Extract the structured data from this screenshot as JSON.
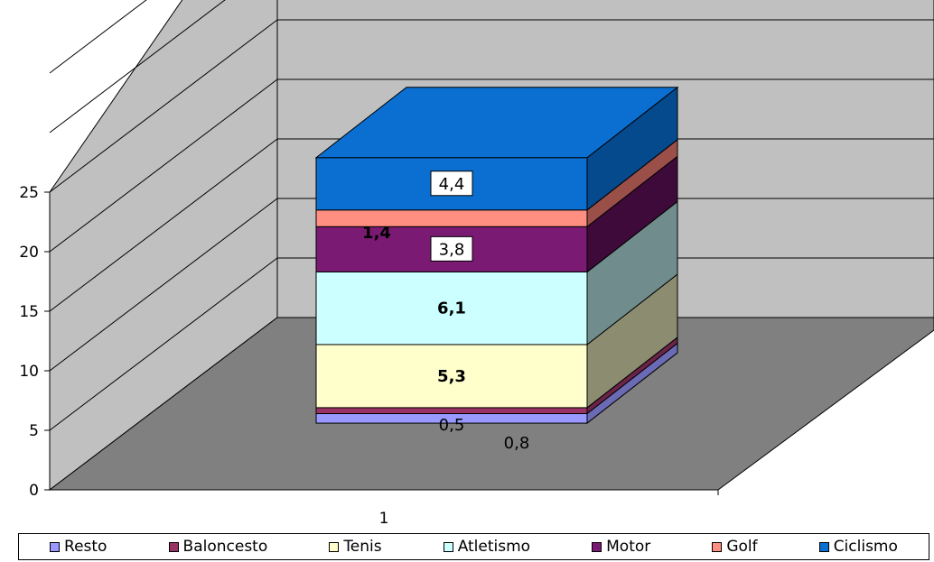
{
  "chart_data": {
    "type": "bar",
    "stacked": true,
    "three_d": true,
    "categories": [
      "1"
    ],
    "ylim": [
      0,
      25
    ],
    "y_ticks": [
      "0",
      "5",
      "10",
      "15",
      "20",
      "25"
    ],
    "grid": true,
    "legend_position": "bottom",
    "series": [
      {
        "name": "Resto",
        "values": [
          0.8
        ],
        "label": "0,8",
        "color": "#9999ff",
        "side": "#6a6ab5",
        "label_style": "plain"
      },
      {
        "name": "Baloncesto",
        "values": [
          0.5
        ],
        "label": "0,5",
        "color": "#993366",
        "side": "#6b2447",
        "label_style": "plain"
      },
      {
        "name": "Tenis",
        "values": [
          5.3
        ],
        "label": "5,3",
        "color": "#ffffcc",
        "side": "#8c8c70",
        "label_style": "bold"
      },
      {
        "name": "Atletismo",
        "values": [
          6.1
        ],
        "label": "6,1",
        "color": "#ccffff",
        "side": "#708c8c",
        "label_style": "bold"
      },
      {
        "name": "Motor",
        "values": [
          3.8
        ],
        "label": "3,8",
        "color": "#7a1a72",
        "side": "#3e0a3a",
        "label_style": "boxed"
      },
      {
        "name": "Golf",
        "values": [
          1.4
        ],
        "label": "1,4",
        "color": "#ff8f80",
        "side": "#9a5048",
        "label_style": "bold"
      },
      {
        "name": "Ciclismo",
        "values": [
          4.4
        ],
        "label": "4,4",
        "color": "#0a6fd0",
        "side": "#064a8e",
        "label_style": "boxed"
      }
    ]
  },
  "legend": {
    "items": [
      {
        "label": "Resto",
        "color": "#9999ff"
      },
      {
        "label": "Baloncesto",
        "color": "#993366"
      },
      {
        "label": "Tenis",
        "color": "#ffffcc"
      },
      {
        "label": "Atletismo",
        "color": "#ccffff"
      },
      {
        "label": "Motor",
        "color": "#7a1a72"
      },
      {
        "label": "Golf",
        "color": "#ff8f80"
      },
      {
        "label": "Ciclismo",
        "color": "#0a6fd0"
      }
    ]
  }
}
